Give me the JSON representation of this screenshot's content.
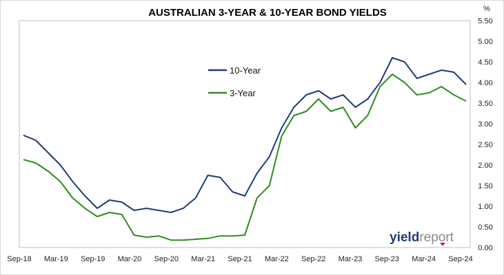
{
  "chart_data": {
    "type": "line",
    "title": "AUSTRALIAN 3-YEAR & 10-YEAR BOND YIELDS",
    "unit_label": "%",
    "xlabel": "",
    "ylabel": "",
    "ylim": [
      0,
      5.5
    ],
    "y_ticks": [
      "0.00",
      "0.50",
      "1.00",
      "1.50",
      "2.00",
      "2.50",
      "3.00",
      "3.50",
      "4.00",
      "4.50",
      "5.00",
      "5.50"
    ],
    "x_ticks": [
      "Sep-18",
      "Mar-19",
      "Sep-19",
      "Mar-20",
      "Sep-20",
      "Mar-21",
      "Sep-21",
      "Mar-22",
      "Sep-22",
      "Mar-23",
      "Sep-23",
      "Mar-24",
      "Sep-24"
    ],
    "x": [
      "Sep-18",
      "Nov-18",
      "Jan-19",
      "Mar-19",
      "May-19",
      "Jul-19",
      "Sep-19",
      "Nov-19",
      "Jan-20",
      "Mar-20",
      "May-20",
      "Jul-20",
      "Sep-20",
      "Nov-20",
      "Jan-21",
      "Mar-21",
      "May-21",
      "Jul-21",
      "Sep-21",
      "Nov-21",
      "Jan-22",
      "Mar-22",
      "May-22",
      "Jul-22",
      "Sep-22",
      "Nov-22",
      "Jan-23",
      "Mar-23",
      "May-23",
      "Jul-23",
      "Sep-23",
      "Nov-23",
      "Jan-24",
      "Mar-24",
      "May-24",
      "Jul-24",
      "Sep-24"
    ],
    "series": [
      {
        "name": "10-Year",
        "color": "#1f3a7a",
        "values": [
          2.72,
          2.6,
          2.3,
          2.0,
          1.6,
          1.25,
          0.95,
          1.15,
          1.1,
          0.9,
          0.95,
          0.9,
          0.85,
          0.95,
          1.2,
          1.75,
          1.7,
          1.35,
          1.25,
          1.8,
          2.2,
          2.9,
          3.4,
          3.7,
          3.8,
          3.6,
          3.7,
          3.4,
          3.6,
          4.0,
          4.6,
          4.5,
          4.1,
          4.2,
          4.3,
          4.25,
          3.95
        ]
      },
      {
        "name": "3-Year",
        "color": "#2e8b1e",
        "values": [
          2.13,
          2.05,
          1.85,
          1.6,
          1.2,
          0.95,
          0.75,
          0.85,
          0.8,
          0.3,
          0.25,
          0.28,
          0.18,
          0.18,
          0.2,
          0.22,
          0.28,
          0.28,
          0.3,
          1.2,
          1.5,
          2.7,
          3.2,
          3.3,
          3.6,
          3.3,
          3.4,
          2.9,
          3.2,
          3.9,
          4.2,
          4.0,
          3.7,
          3.75,
          3.9,
          3.7,
          3.55
        ]
      }
    ],
    "legend_position": "upper-middle",
    "grid": false
  },
  "logo": {
    "part1": "yield",
    "part2": "report"
  }
}
